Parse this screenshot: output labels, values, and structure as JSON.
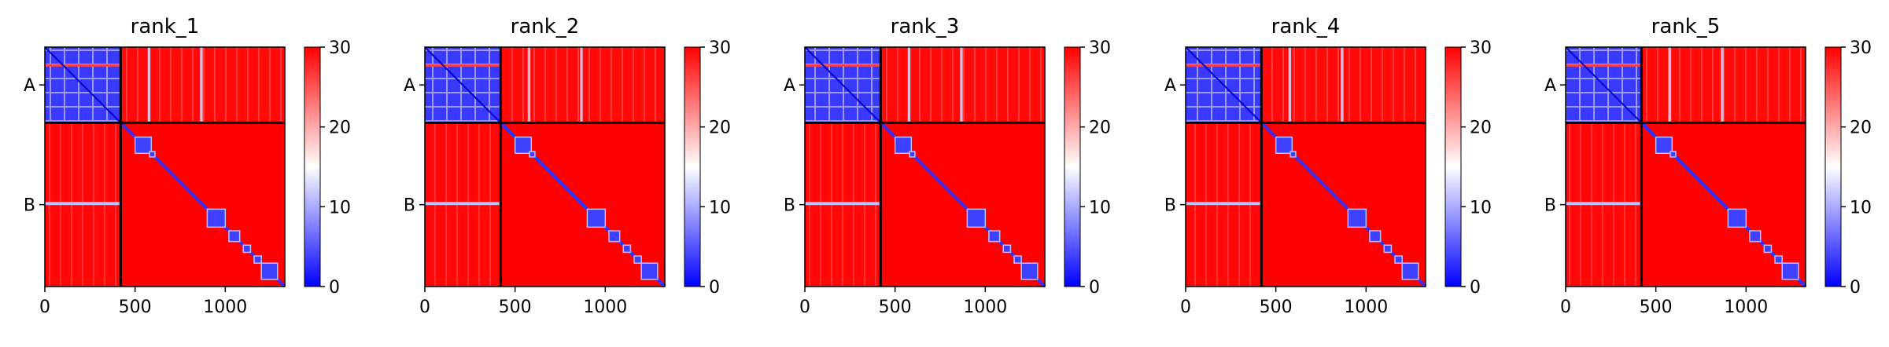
{
  "chart_data": {
    "type": "heatmap",
    "description_note": "",
    "colorbar": {
      "ticks": [
        0,
        10,
        20,
        30
      ],
      "range": [
        0,
        30
      ],
      "colors": [
        "#0000ff",
        "#ffffff",
        "#ff0000"
      ]
    },
    "x_ticks": [
      0,
      500,
      1000
    ],
    "x_range": [
      0,
      1330
    ],
    "chains": [
      {
        "label": "A",
        "start": 0,
        "end": 420
      },
      {
        "label": "B",
        "start": 420,
        "end": 1330
      }
    ],
    "panels": [
      {
        "title": "rank_1",
        "diag_blocks": [
          [
            500,
            590
          ],
          [
            580,
            610
          ],
          [
            900,
            1000
          ],
          [
            1020,
            1080
          ],
          [
            1100,
            1140
          ],
          [
            1160,
            1200
          ],
          [
            1200,
            1290
          ]
        ],
        "chainA_cross_stripes": [
          570,
          585,
          860,
          875
        ]
      },
      {
        "title": "rank_2",
        "diag_blocks": [
          [
            500,
            590
          ],
          [
            580,
            610
          ],
          [
            900,
            1000
          ],
          [
            1020,
            1080
          ],
          [
            1100,
            1140
          ],
          [
            1160,
            1200
          ],
          [
            1200,
            1290
          ]
        ],
        "chainA_cross_stripes": [
          570,
          585,
          860,
          875
        ]
      },
      {
        "title": "rank_3",
        "diag_blocks": [
          [
            500,
            590
          ],
          [
            580,
            610
          ],
          [
            900,
            1000
          ],
          [
            1020,
            1080
          ],
          [
            1100,
            1140
          ],
          [
            1160,
            1200
          ],
          [
            1200,
            1290
          ]
        ],
        "chainA_cross_stripes": [
          570,
          585,
          860,
          875
        ]
      },
      {
        "title": "rank_4",
        "diag_blocks": [
          [
            500,
            590
          ],
          [
            580,
            610
          ],
          [
            900,
            1000
          ],
          [
            1020,
            1080
          ],
          [
            1100,
            1140
          ],
          [
            1160,
            1200
          ],
          [
            1200,
            1290
          ]
        ],
        "chainA_cross_stripes": [
          570,
          585,
          860,
          875
        ]
      },
      {
        "title": "rank_5",
        "diag_blocks": [
          [
            500,
            590
          ],
          [
            580,
            610
          ],
          [
            900,
            1000
          ],
          [
            1020,
            1080
          ],
          [
            1100,
            1140
          ],
          [
            1160,
            1200
          ],
          [
            1200,
            1290
          ]
        ],
        "chainA_cross_stripes": [
          570,
          585,
          860,
          875
        ]
      }
    ]
  }
}
